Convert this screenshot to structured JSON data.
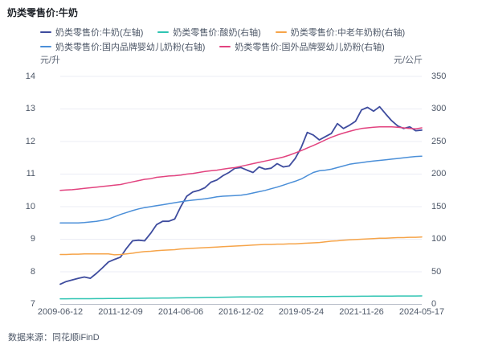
{
  "chart_data": {
    "type": "line",
    "title": "奶类零售价:牛奶",
    "source": "数据来源：同花顺iFinD",
    "grid": true,
    "legend_position": "top",
    "x_tick_labels": [
      "2009-06-12",
      "2011-12-09",
      "2014-06-06",
      "2016-12-02",
      "2019-05-24",
      "2021-11-26",
      "2024-05-17"
    ],
    "left_axis": {
      "unit": "元/升",
      "min": 7,
      "max": 14,
      "ticks": [
        14,
        13,
        12,
        11,
        10,
        9,
        8,
        7
      ]
    },
    "right_axis": {
      "unit": "元/公斤",
      "min": 0,
      "max": 350,
      "ticks": [
        350,
        300,
        250,
        200,
        150,
        100,
        50,
        0
      ]
    },
    "legend_rows": [
      [
        0,
        1,
        2
      ],
      [
        3,
        4
      ]
    ],
    "series": [
      {
        "name": "奶类零售价:牛奶(左轴)",
        "axis": "left",
        "color": "#3e4c9e",
        "values": [
          7.62,
          7.7,
          7.75,
          7.8,
          7.84,
          7.8,
          7.95,
          8.12,
          8.3,
          8.38,
          8.45,
          8.72,
          8.95,
          8.97,
          8.95,
          9.18,
          9.45,
          9.55,
          9.55,
          9.62,
          10.0,
          10.32,
          10.45,
          10.5,
          10.58,
          10.75,
          10.82,
          10.95,
          11.05,
          11.18,
          11.2,
          11.12,
          11.05,
          11.22,
          11.15,
          11.18,
          11.32,
          11.22,
          11.25,
          11.48,
          11.82,
          12.28,
          12.2,
          12.05,
          12.15,
          12.25,
          12.55,
          12.4,
          12.5,
          12.62,
          12.97,
          13.05,
          12.93,
          13.07,
          12.85,
          12.64,
          12.48,
          12.4,
          12.45,
          12.33,
          12.35
        ]
      },
      {
        "name": "奶类零售价:酸奶(右轴)",
        "axis": "right",
        "color": "#2ec4b2",
        "values": [
          8.5,
          8.5,
          8.6,
          8.6,
          8.7,
          8.7,
          8.8,
          8.8,
          8.9,
          9.0,
          9.0,
          9.1,
          9.2,
          9.3,
          9.4,
          9.5,
          9.6,
          9.7,
          9.8,
          9.9,
          10.0,
          10.1,
          10.3,
          10.4,
          10.6,
          10.7,
          10.9,
          11.0,
          11.1,
          11.2,
          11.3,
          11.4,
          11.5,
          11.5,
          11.6,
          11.6,
          11.7,
          11.7,
          11.8,
          11.8,
          11.9,
          11.9,
          12.0,
          12.0,
          12.1,
          12.2,
          12.2,
          12.3,
          12.4,
          12.4,
          12.5,
          12.5,
          12.6,
          12.6,
          12.7,
          12.7,
          12.8,
          12.8,
          12.9,
          12.9,
          13.0
        ]
      },
      {
        "name": "奶类零售价:中老年奶粉(右轴)",
        "axis": "right",
        "color": "#f6a449",
        "values": [
          76.5,
          76.5,
          77,
          77,
          77.5,
          77.5,
          77.5,
          77.5,
          77.5,
          76,
          76.5,
          77.5,
          78.5,
          80,
          81,
          81.5,
          82.5,
          83,
          83.5,
          84,
          85,
          85.5,
          86,
          86.5,
          87,
          87.5,
          88,
          88.5,
          89,
          89.5,
          90,
          90.5,
          91,
          91.5,
          92,
          92,
          92.5,
          92.5,
          93,
          93,
          93.5,
          94,
          94.5,
          95,
          96,
          97,
          97.5,
          98.5,
          99,
          99.5,
          100,
          100.5,
          101,
          101.5,
          101.5,
          102,
          102.5,
          102.5,
          103,
          103,
          103.5
        ]
      },
      {
        "name": "奶类零售价:国内品牌婴幼儿奶粉(右轴)",
        "axis": "right",
        "color": "#4b8fd8",
        "values": [
          125,
          125,
          125,
          125,
          125.5,
          126.5,
          127.5,
          129,
          131,
          134.5,
          138,
          141,
          144,
          146.5,
          148.5,
          150,
          151.5,
          153,
          154.5,
          156,
          157.5,
          159,
          160,
          161,
          162,
          163.5,
          165,
          166,
          166.5,
          167,
          167.5,
          169,
          171,
          173,
          175,
          177.5,
          180,
          183,
          186,
          189,
          192.5,
          197.5,
          202.5,
          205,
          206,
          207.5,
          210,
          212.5,
          215,
          216.5,
          217.5,
          219,
          220,
          221,
          222,
          223,
          224,
          225,
          226,
          227,
          227.5
        ]
      },
      {
        "name": "奶类零售价:国外品牌婴幼儿奶粉(右轴)",
        "axis": "right",
        "color": "#e2437f",
        "values": [
          175,
          175.5,
          176,
          177,
          178,
          179,
          180,
          181,
          182,
          183,
          184,
          186,
          188,
          190,
          192,
          193,
          195,
          196,
          197,
          197.5,
          198.5,
          200,
          201,
          202.5,
          204,
          205,
          206,
          207.5,
          209,
          210,
          212,
          214,
          216,
          218,
          220,
          222,
          224,
          226,
          229,
          232.5,
          236,
          240,
          244,
          248,
          252.5,
          256.5,
          260,
          263,
          265.5,
          268,
          270,
          271,
          272,
          272.5,
          272.5,
          272.5,
          272,
          271,
          270,
          269.5,
          271
        ]
      }
    ]
  }
}
